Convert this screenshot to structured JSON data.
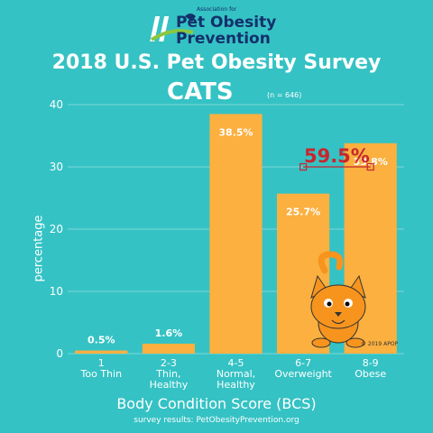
{
  "logo": {
    "small_text": "Association for",
    "line1": "Pet Obesity",
    "line2": "Prevention"
  },
  "chart_data": {
    "type": "bar",
    "title": "2018 U.S. Pet Obesity Survey",
    "subtitle": "CATS",
    "sample_note": "(n = 646)",
    "categories": [
      [
        "1",
        "Too Thin"
      ],
      [
        "2-3",
        "Thin,",
        "Healthy"
      ],
      [
        "4-5",
        "Normal,",
        "Healthy"
      ],
      [
        "6-7",
        "Overweight"
      ],
      [
        "8-9",
        "Obese"
      ]
    ],
    "values": [
      0.5,
      1.6,
      38.5,
      25.7,
      33.8
    ],
    "value_labels": [
      "0.5%",
      "1.6%",
      "38.5%",
      "25.7%",
      "33.8%"
    ],
    "ylabel": "percentage",
    "xlabel": "Body Condition Score (BCS)",
    "ylim": [
      0,
      40
    ],
    "yticks": [
      0,
      10,
      20,
      30,
      40
    ],
    "grid": true,
    "annotation": {
      "text": "59.5%",
      "spans": [
        "6-7",
        "8-9"
      ]
    },
    "bar_color": "#fbb040",
    "annotation_color": "#c8262e"
  },
  "source": "survey results: PetObesityPrevention.org",
  "copyright": "© 2019 APOP"
}
